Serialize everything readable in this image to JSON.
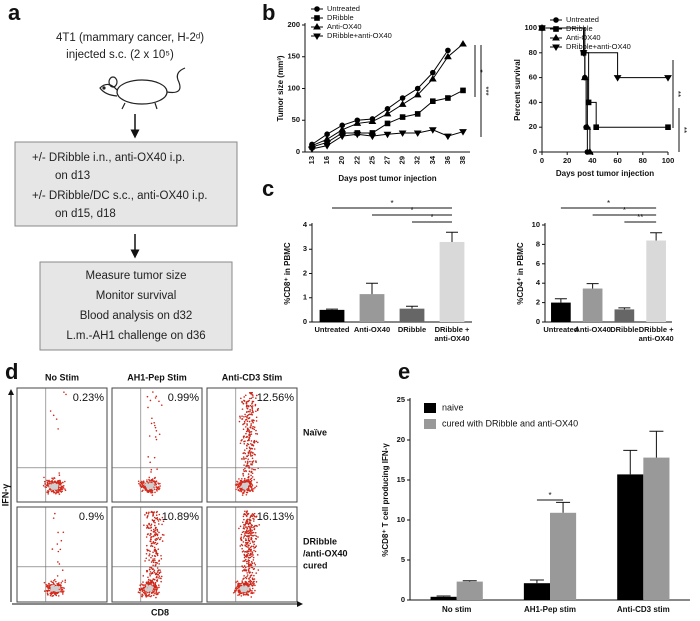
{
  "panel_labels": [
    "a",
    "b",
    "c",
    "d",
    "e"
  ],
  "diagram": {
    "intro": [
      "4T1 (mammary cancer, H-2ᵈ)",
      "injected s.c. (2 x 10⁵)"
    ],
    "treatment_box": [
      "+/- DRibble i.n., anti-OX40 i.p.",
      "on d13",
      "+/- DRibble/DC s.c., anti-OX40 i.p.",
      "on d15, d18"
    ],
    "readout_box": [
      "Measure tumor size",
      "Monitor survival",
      "Blood analysis on d32",
      "L.m.-AH1 challenge on d36"
    ]
  },
  "flow": {
    "columns": [
      "No Stim",
      "AH1-Pep Stim",
      "Anti-CD3 Stim"
    ],
    "rows": [
      [
        "Naïve"
      ],
      [
        "DRibble",
        "/anti-OX40",
        "cured"
      ]
    ],
    "percents": [
      [
        "0.23%",
        "0.99%",
        "12.56%"
      ],
      [
        "0.9%",
        "10.89%",
        "16.13%"
      ]
    ],
    "ylabel": "IFN-γ",
    "xlabel": "CD8"
  },
  "chart_data": [
    {
      "type": "line",
      "categories": [
        "13",
        "16",
        "20",
        "22",
        "25",
        "27",
        "29",
        "32",
        "34",
        "36",
        "38"
      ],
      "series": [
        {
          "name": "Untreated",
          "marker": "circle",
          "color": "#000000",
          "values": [
            12,
            28,
            42,
            50,
            52,
            68,
            85,
            100,
            125,
            160,
            null
          ]
        },
        {
          "name": "DRibble",
          "marker": "square",
          "color": "#000000",
          "values": [
            8,
            15,
            30,
            30,
            30,
            45,
            55,
            60,
            80,
            85,
            97
          ]
        },
        {
          "name": "Anti-OX40",
          "marker": "triangle",
          "color": "#000000",
          "values": [
            10,
            20,
            35,
            45,
            48,
            60,
            75,
            90,
            115,
            150,
            170
          ]
        },
        {
          "name": "DRibble+anti-OX40",
          "marker": "triangle-down",
          "color": "#000000",
          "values": [
            5,
            10,
            25,
            28,
            25,
            28,
            30,
            30,
            35,
            25,
            32
          ]
        }
      ],
      "xlabel": "Days post tumor injection",
      "ylabel": "Tumor size (mm³)",
      "ylim": [
        0,
        200
      ],
      "yticks": [
        0,
        50,
        100,
        150,
        200
      ],
      "legend": "upper left",
      "annotations": [
        "*",
        "***"
      ]
    },
    {
      "type": "step",
      "series": [
        {
          "name": "Untreated",
          "marker": "circle",
          "color": "#000000",
          "x": [
            0,
            33,
            34,
            35,
            36
          ],
          "values": [
            100,
            80,
            60,
            20,
            0
          ]
        },
        {
          "name": "DRibble",
          "marker": "square",
          "color": "#000000",
          "x": [
            0,
            33,
            37,
            43,
            100
          ],
          "values": [
            100,
            80,
            40,
            20,
            20
          ]
        },
        {
          "name": "Anti-OX40",
          "marker": "triangle",
          "color": "#000000",
          "x": [
            0,
            34,
            36,
            38
          ],
          "values": [
            100,
            60,
            20,
            0
          ]
        },
        {
          "name": "DRibble+anti-OX40",
          "marker": "triangle-down",
          "color": "#000000",
          "x": [
            0,
            33,
            60,
            100
          ],
          "values": [
            100,
            80,
            60,
            60
          ]
        }
      ],
      "xlabel": "Days post tumor injection",
      "ylabel": "Percent survival",
      "xlim": [
        0,
        100
      ],
      "xticks": [
        0,
        20,
        40,
        60,
        80,
        100
      ],
      "ylim": [
        0,
        100
      ],
      "yticks": [
        0,
        20,
        40,
        60,
        80,
        100
      ],
      "legend": "upper left",
      "annotations": [
        "**",
        "**"
      ]
    },
    {
      "type": "bar",
      "categories": [
        "Untreated",
        "Anti-OX40",
        "DRibble",
        "DRibble + anti-OX40"
      ],
      "values": [
        0.5,
        1.15,
        0.55,
        3.3
      ],
      "errors": [
        0.03,
        0.45,
        0.1,
        0.4
      ],
      "colors": [
        "#000000",
        "#999999",
        "#666666",
        "#d9d9d9"
      ],
      "ylabel": "%CD8⁺ in PBMC",
      "ylim": [
        0,
        4
      ],
      "yticks": [
        0,
        1,
        2,
        3,
        4
      ],
      "annotations": [
        "*",
        "*",
        "*"
      ]
    },
    {
      "type": "bar",
      "categories": [
        "Untreated",
        "Anti-OX40",
        "DRibble",
        "DRibble + anti-OX40"
      ],
      "values": [
        2.0,
        3.45,
        1.3,
        8.4
      ],
      "errors": [
        0.4,
        0.5,
        0.15,
        0.8
      ],
      "colors": [
        "#000000",
        "#999999",
        "#666666",
        "#d9d9d9"
      ],
      "ylabel": "%CD4⁺ in PBMC",
      "ylim": [
        0,
        10
      ],
      "yticks": [
        0,
        2,
        4,
        6,
        8,
        10
      ],
      "annotations": [
        "*",
        "*",
        "**"
      ]
    },
    {
      "type": "grouped_bar",
      "categories": [
        "No stim",
        "AH1-Pep stim",
        "Anti-CD3 stim"
      ],
      "series": [
        {
          "name": "naive",
          "color": "#000000",
          "values": [
            0.4,
            2.1,
            15.7
          ],
          "errors": [
            0.1,
            0.4,
            3
          ]
        },
        {
          "name": "cured with DRibble and anti-OX40",
          "color": "#999999",
          "values": [
            2.3,
            10.9,
            17.8
          ],
          "errors": [
            0.1,
            1.3,
            3.3
          ]
        }
      ],
      "ylabel": "%CD8⁺ T cell producing IFN-γ",
      "ylim": [
        0,
        25
      ],
      "yticks": [
        0,
        5,
        10,
        15,
        20,
        25
      ],
      "legend": "upper left",
      "annotations": [
        "*"
      ]
    }
  ]
}
